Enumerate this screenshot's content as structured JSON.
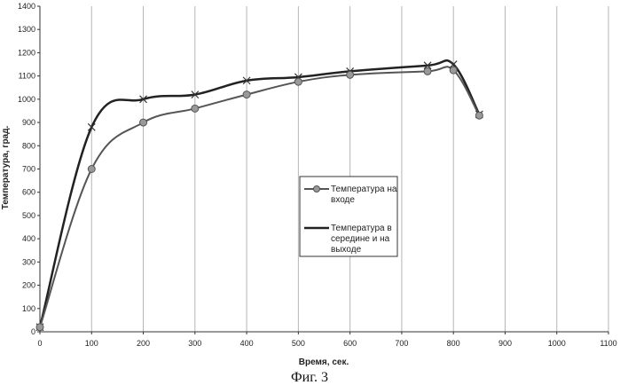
{
  "caption": "Фиг. 3",
  "chart_data": {
    "type": "line",
    "xlabel": "Время, сек.",
    "ylabel": "Температура, град.",
    "xlim": [
      0,
      1100
    ],
    "ylim": [
      0,
      1400
    ],
    "xticks": [
      0,
      100,
      200,
      300,
      400,
      500,
      600,
      700,
      800,
      900,
      1000,
      1100
    ],
    "yticks": [
      0,
      100,
      200,
      300,
      400,
      500,
      600,
      700,
      800,
      900,
      1000,
      1100,
      1200,
      1300,
      1400
    ],
    "grid": "vertical",
    "legend_position": "center-right",
    "series": [
      {
        "name": "Температура на входе",
        "marker": "circle",
        "color": "#555555",
        "x": [
          0,
          100,
          200,
          300,
          400,
          500,
          600,
          750,
          800,
          850
        ],
        "y": [
          20,
          700,
          900,
          960,
          1020,
          1075,
          1105,
          1120,
          1125,
          930
        ]
      },
      {
        "name": "Температура в середине и на выходе",
        "marker": "x",
        "color": "#222222",
        "x": [
          0,
          100,
          200,
          300,
          400,
          500,
          600,
          750,
          800,
          850
        ],
        "y": [
          20,
          880,
          1000,
          1020,
          1080,
          1095,
          1120,
          1145,
          1150,
          935
        ]
      }
    ]
  }
}
